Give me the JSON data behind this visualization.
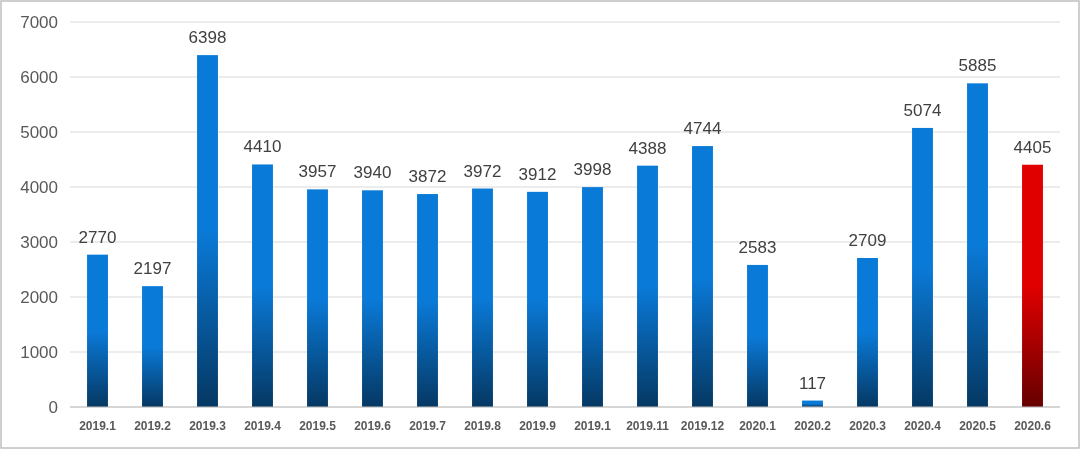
{
  "chart_data": {
    "type": "bar",
    "categories": [
      "2019.1",
      "2019.2",
      "2019.3",
      "2019.4",
      "2019.5",
      "2019.6",
      "2019.7",
      "2019.8",
      "2019.9",
      "2019.1",
      "2019.11",
      "2019.12",
      "2020.1",
      "2020.2",
      "2020.3",
      "2020.4",
      "2020.5",
      "2020.6"
    ],
    "values": [
      2770,
      2197,
      6398,
      4410,
      3957,
      3940,
      3872,
      3972,
      3912,
      3998,
      4388,
      4744,
      2583,
      117,
      2709,
      5074,
      5885,
      4405
    ],
    "colors": [
      "#0a7ad8",
      "#0a7ad8",
      "#0a7ad8",
      "#0a7ad8",
      "#0a7ad8",
      "#0a7ad8",
      "#0a7ad8",
      "#0a7ad8",
      "#0a7ad8",
      "#0a7ad8",
      "#0a7ad8",
      "#0a7ad8",
      "#0a7ad8",
      "#0a7ad8",
      "#0a7ad8",
      "#0a7ad8",
      "#0a7ad8",
      "#e00000"
    ],
    "ylim": [
      0,
      7000
    ],
    "yticks": [
      0,
      1000,
      2000,
      3000,
      4000,
      5000,
      6000,
      7000
    ],
    "grid": "y",
    "data_labels": true
  }
}
